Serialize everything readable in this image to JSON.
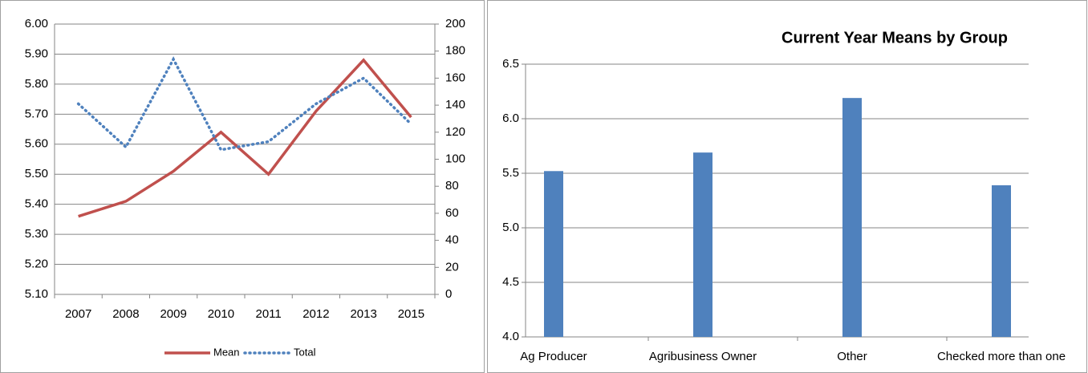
{
  "chart_data": [
    {
      "type": "line",
      "categories": [
        "2007",
        "2008",
        "2009",
        "2010",
        "2011",
        "2012",
        "2013",
        "2015"
      ],
      "series": [
        {
          "name": "Mean",
          "color": "#c0504d",
          "values": [
            5.36,
            5.41,
            5.51,
            5.64,
            5.5,
            5.71,
            5.88,
            5.69
          ]
        },
        {
          "name": "Total",
          "color": "#4f81bd",
          "axis": "y2",
          "values": [
            141,
            109,
            174,
            107,
            113,
            141,
            160,
            126
          ]
        }
      ],
      "ylim": [
        5.1,
        6.0
      ],
      "yticks": [
        {
          "value": 5.1,
          "label": "5.10"
        },
        {
          "value": 5.2,
          "label": "5.20"
        },
        {
          "value": 5.3,
          "label": "5.30"
        },
        {
          "value": 5.4,
          "label": "5.40"
        },
        {
          "value": 5.5,
          "label": "5.50"
        },
        {
          "value": 5.6,
          "label": "5.60"
        },
        {
          "value": 5.7,
          "label": "5.70"
        },
        {
          "value": 5.8,
          "label": "5.80"
        },
        {
          "value": 5.9,
          "label": "5.90"
        },
        {
          "value": 6.0,
          "label": "6.00"
        }
      ],
      "y2lim": [
        0,
        200
      ],
      "y2ticks": [
        0,
        20,
        40,
        60,
        80,
        100,
        120,
        140,
        160,
        180,
        200
      ],
      "grid": true,
      "legend": "bottom"
    },
    {
      "type": "bar",
      "title": "Current Year Means by Group",
      "categories": [
        "Ag Producer",
        "Agribusiness Owner",
        "Other",
        "Checked more than one"
      ],
      "values": [
        5.52,
        5.69,
        6.19,
        5.39
      ],
      "color": "#4f81bd",
      "ylim": [
        4.0,
        6.5
      ],
      "yticks": [
        {
          "value": 4.0,
          "label": "4.0"
        },
        4.5,
        {
          "value": 5.0,
          "label": "5.0"
        },
        5.5,
        {
          "value": 6.0,
          "label": "6.0"
        },
        6.5
      ],
      "grid": true
    }
  ]
}
